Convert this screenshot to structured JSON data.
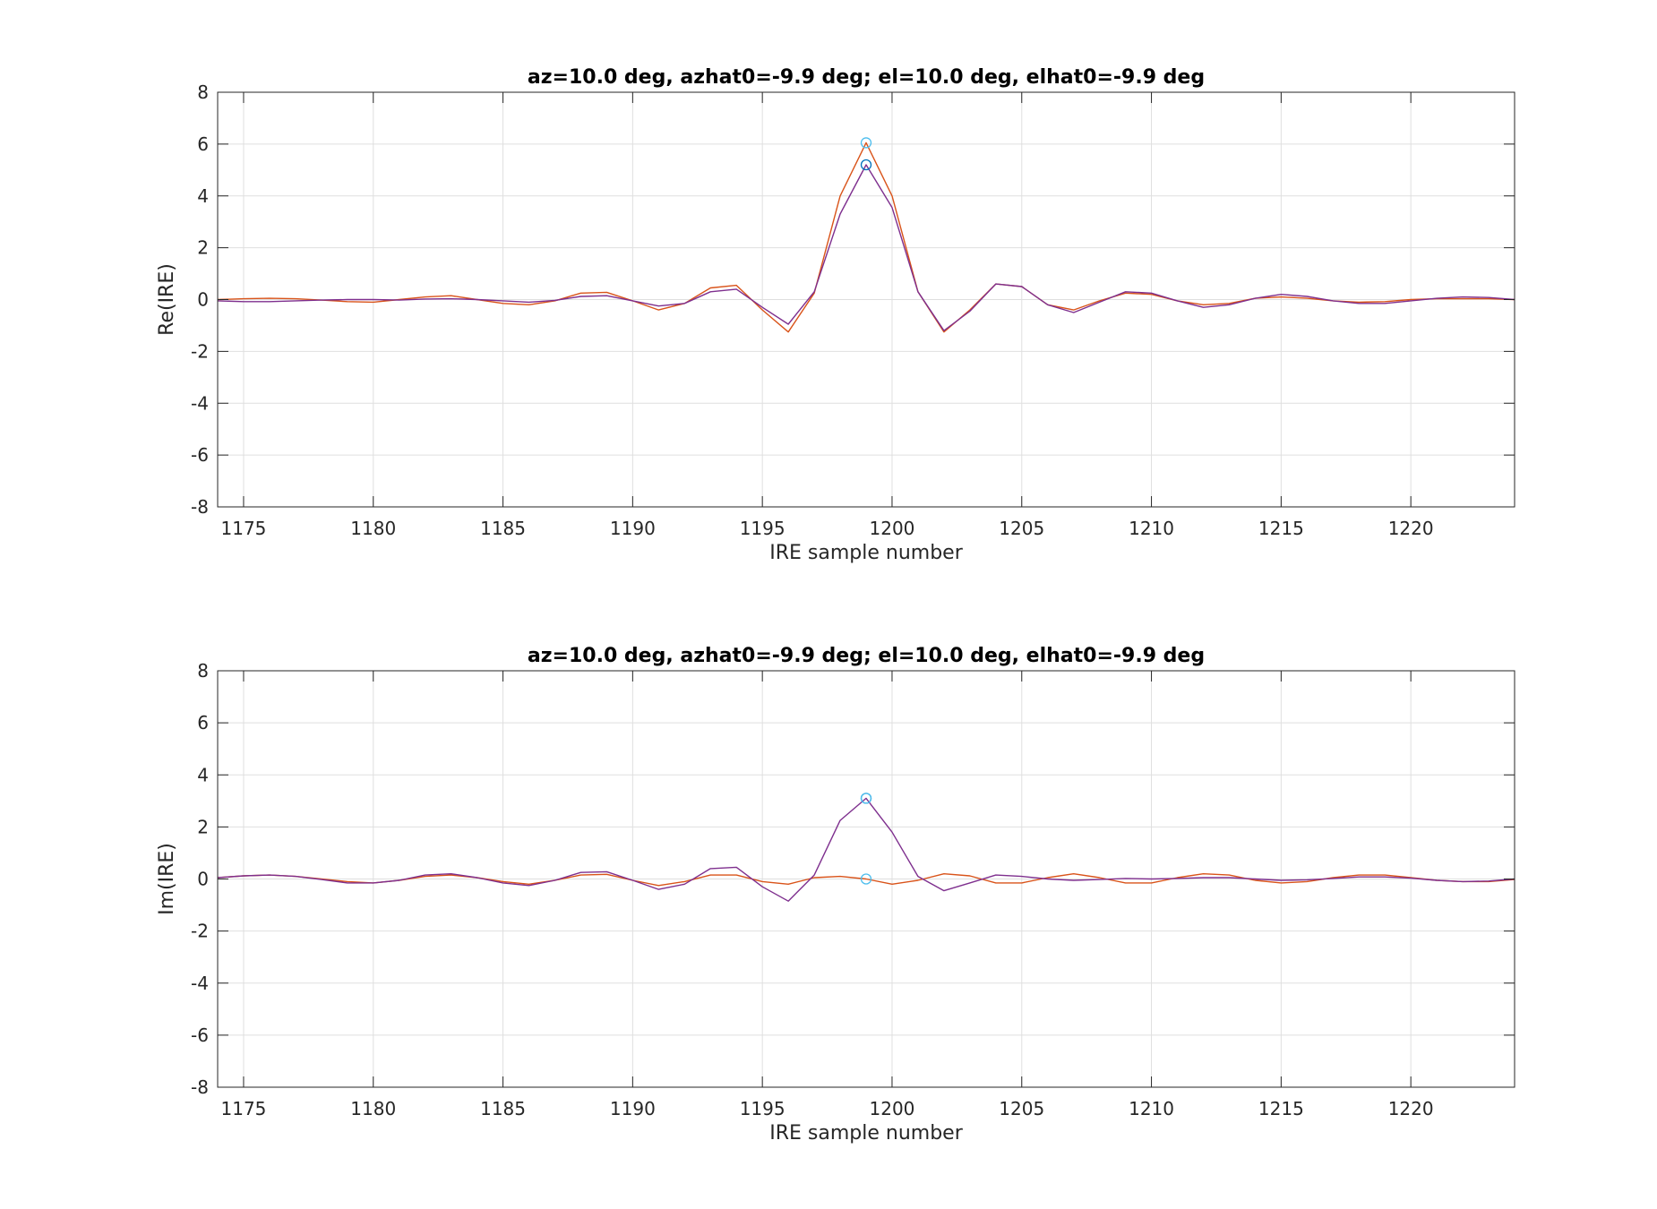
{
  "colors": {
    "orange": "#D95319",
    "purple": "#7E2F8E",
    "blue": "#0072BD",
    "cyan": "#4DBEEE",
    "grid": "#DFDFDF",
    "axis": "#262626"
  },
  "chart_data": [
    {
      "type": "line",
      "title": "az=10.0 deg, azhat0=-9.9 deg; el=10.0 deg, elhat0=-9.9 deg",
      "xlabel": "IRE sample number",
      "ylabel": "Re(IRE)",
      "xlim": [
        1174,
        1224
      ],
      "ylim": [
        -8,
        8
      ],
      "xticks": [
        1175,
        1180,
        1185,
        1190,
        1195,
        1200,
        1205,
        1210,
        1215,
        1220
      ],
      "yticks": [
        -8,
        -6,
        -4,
        -2,
        0,
        2,
        4,
        6,
        8
      ],
      "grid": true,
      "x": [
        1174,
        1175,
        1176,
        1177,
        1178,
        1179,
        1180,
        1181,
        1182,
        1183,
        1184,
        1185,
        1186,
        1187,
        1188,
        1189,
        1190,
        1191,
        1192,
        1193,
        1194,
        1195,
        1196,
        1197,
        1198,
        1199,
        1200,
        1201,
        1202,
        1203,
        1204,
        1205,
        1206,
        1207,
        1208,
        1209,
        1210,
        1211,
        1212,
        1213,
        1214,
        1215,
        1216,
        1217,
        1218,
        1219,
        1220,
        1221,
        1222,
        1223,
        1224
      ],
      "series": [
        {
          "color": "#D95319",
          "values": [
            0.0,
            0.03,
            0.05,
            0.03,
            -0.02,
            -0.08,
            -0.1,
            0.0,
            0.1,
            0.15,
            0.0,
            -0.15,
            -0.2,
            -0.05,
            0.25,
            0.28,
            -0.05,
            -0.4,
            -0.15,
            0.45,
            0.55,
            -0.4,
            -1.25,
            0.25,
            4.0,
            6.05,
            4.0,
            0.3,
            -1.25,
            -0.4,
            0.6,
            0.5,
            -0.2,
            -0.4,
            -0.05,
            0.25,
            0.2,
            -0.05,
            -0.2,
            -0.15,
            0.05,
            0.1,
            0.05,
            -0.05,
            -0.1,
            -0.08,
            0.0,
            0.03,
            0.03,
            0.03,
            0.0
          ]
        },
        {
          "color": "#7E2F8E",
          "values": [
            -0.05,
            -0.08,
            -0.08,
            -0.05,
            -0.02,
            0.0,
            0.0,
            -0.02,
            0.02,
            0.03,
            0.0,
            -0.05,
            -0.1,
            -0.03,
            0.12,
            0.15,
            -0.05,
            -0.25,
            -0.15,
            0.3,
            0.4,
            -0.3,
            -0.95,
            0.3,
            3.3,
            5.2,
            3.55,
            0.3,
            -1.2,
            -0.45,
            0.6,
            0.5,
            -0.2,
            -0.5,
            -0.1,
            0.3,
            0.25,
            -0.05,
            -0.3,
            -0.2,
            0.05,
            0.2,
            0.12,
            -0.05,
            -0.15,
            -0.15,
            -0.05,
            0.05,
            0.1,
            0.08,
            0.0
          ]
        }
      ],
      "markers": [
        {
          "x": 1199,
          "y": 6.05,
          "color": "#4DBEEE"
        },
        {
          "x": 1199,
          "y": 5.2,
          "color": "#0072BD"
        }
      ]
    },
    {
      "type": "line",
      "title": "az=10.0 deg, azhat0=-9.9 deg; el=10.0 deg, elhat0=-9.9 deg",
      "xlabel": "IRE sample number",
      "ylabel": "Im(IRE)",
      "xlim": [
        1174,
        1224
      ],
      "ylim": [
        -8,
        8
      ],
      "xticks": [
        1175,
        1180,
        1185,
        1190,
        1195,
        1200,
        1205,
        1210,
        1215,
        1220
      ],
      "yticks": [
        -8,
        -6,
        -4,
        -2,
        0,
        2,
        4,
        6,
        8
      ],
      "grid": true,
      "x": [
        1174,
        1175,
        1176,
        1177,
        1178,
        1179,
        1180,
        1181,
        1182,
        1183,
        1184,
        1185,
        1186,
        1187,
        1188,
        1189,
        1190,
        1191,
        1192,
        1193,
        1194,
        1195,
        1196,
        1197,
        1198,
        1199,
        1200,
        1201,
        1202,
        1203,
        1204,
        1205,
        1206,
        1207,
        1208,
        1209,
        1210,
        1211,
        1212,
        1213,
        1214,
        1215,
        1216,
        1217,
        1218,
        1219,
        1220,
        1221,
        1222,
        1223,
        1224
      ],
      "series": [
        {
          "color": "#D95319",
          "values": [
            0.05,
            0.12,
            0.15,
            0.1,
            0.0,
            -0.1,
            -0.15,
            -0.05,
            0.1,
            0.15,
            0.05,
            -0.1,
            -0.2,
            -0.05,
            0.15,
            0.18,
            -0.05,
            -0.25,
            -0.1,
            0.15,
            0.15,
            -0.1,
            -0.2,
            0.05,
            0.1,
            0.0,
            -0.2,
            -0.05,
            0.2,
            0.12,
            -0.15,
            -0.15,
            0.05,
            0.2,
            0.05,
            -0.15,
            -0.15,
            0.05,
            0.2,
            0.15,
            -0.05,
            -0.15,
            -0.1,
            0.05,
            0.15,
            0.15,
            0.05,
            -0.05,
            -0.1,
            -0.1,
            -0.02
          ]
        },
        {
          "color": "#7E2F8E",
          "values": [
            0.05,
            0.12,
            0.15,
            0.1,
            -0.02,
            -0.15,
            -0.15,
            -0.05,
            0.15,
            0.2,
            0.05,
            -0.15,
            -0.25,
            -0.05,
            0.25,
            0.28,
            -0.05,
            -0.4,
            -0.2,
            0.4,
            0.45,
            -0.3,
            -0.85,
            0.15,
            2.25,
            3.1,
            1.8,
            0.1,
            -0.45,
            -0.15,
            0.15,
            0.1,
            0.0,
            -0.05,
            -0.02,
            0.02,
            0.0,
            0.02,
            0.05,
            0.05,
            0.0,
            -0.05,
            -0.03,
            0.02,
            0.08,
            0.08,
            0.03,
            -0.05,
            -0.1,
            -0.08,
            0.0
          ]
        }
      ],
      "markers": [
        {
          "x": 1199,
          "y": 3.1,
          "color": "#0072BD"
        },
        {
          "x": 1199,
          "y": 3.1,
          "color": "#4DBEEE"
        },
        {
          "x": 1199,
          "y": 0.0,
          "color": "#4DBEEE"
        }
      ]
    }
  ]
}
